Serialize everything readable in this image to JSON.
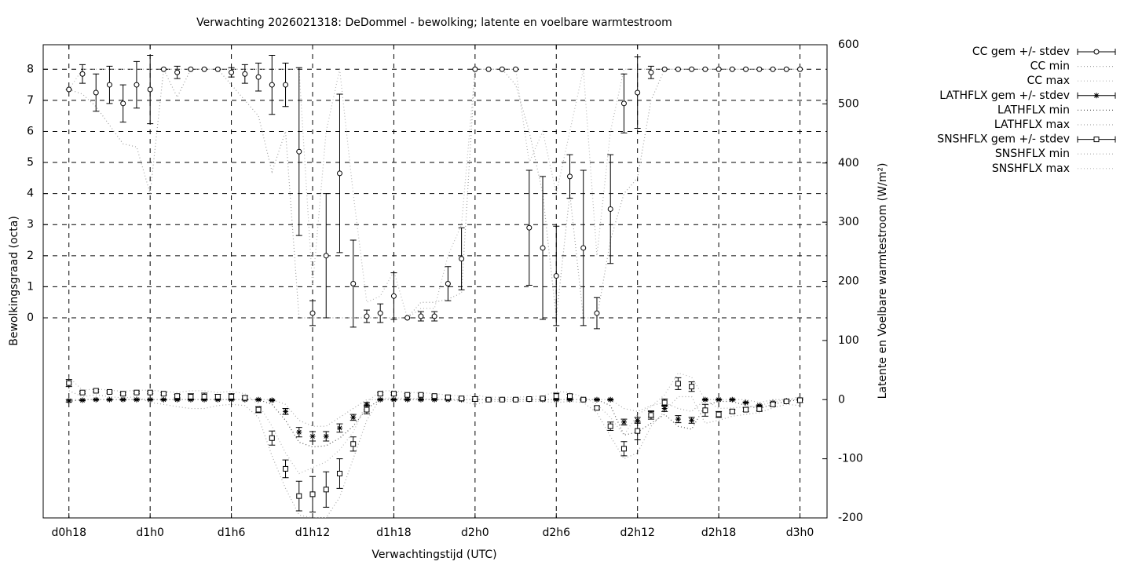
{
  "chart_data": {
    "type": "errorbar",
    "title": "Verwachting 2026021318: DeDommel - bewolking; latente en voelbare warmtestroom",
    "xlabel": "Verwachtingstijd (UTC)",
    "ylabel": "Bewolkingsgraad (octa)",
    "y2label": "Latente en Voelbare warmtestroom (W/m²)",
    "grid": true,
    "xlim": [
      16.1,
      74
    ],
    "xticks": [
      {
        "value": 18,
        "label": "d0h18"
      },
      {
        "value": 24,
        "label": "d1h0"
      },
      {
        "value": 30,
        "label": "d1h6"
      },
      {
        "value": 36,
        "label": "d1h12"
      },
      {
        "value": 42,
        "label": "d1h18"
      },
      {
        "value": 48,
        "label": "d2h0"
      },
      {
        "value": 54,
        "label": "d2h6"
      },
      {
        "value": 60,
        "label": "d2h12"
      },
      {
        "value": 66,
        "label": "d2h18"
      },
      {
        "value": 72,
        "label": "d3h0"
      }
    ],
    "ylim": [
      -6.44,
      8.79
    ],
    "yticks": [
      0,
      1,
      2,
      3,
      4,
      5,
      6,
      7,
      8
    ],
    "y2lim": [
      -200,
      600
    ],
    "y2ticks": [
      -200,
      -100,
      0,
      100,
      200,
      300,
      400,
      500,
      600
    ],
    "x": [
      18,
      19,
      20,
      21,
      22,
      23,
      24,
      25,
      26,
      27,
      28,
      29,
      30,
      31,
      32,
      33,
      34,
      35,
      36,
      37,
      38,
      39,
      40,
      41,
      42,
      43,
      44,
      45,
      46,
      47,
      48,
      49,
      50,
      51,
      52,
      53,
      54,
      55,
      56,
      57,
      58,
      59,
      60,
      61,
      62,
      63,
      64,
      65,
      66,
      67,
      68,
      69,
      70,
      71,
      72
    ],
    "series": [
      {
        "name": "CC gem +/- stdev",
        "style": "errorbars",
        "marker": "circle",
        "axis": "y",
        "color": "#000000",
        "values": [
          7.35,
          7.85,
          7.25,
          7.5,
          6.9,
          7.5,
          7.35,
          8,
          7.9,
          8,
          8,
          8,
          7.9,
          7.85,
          7.75,
          7.5,
          7.5,
          5.35,
          0.15,
          2.0,
          4.65,
          1.1,
          0.05,
          0.15,
          0.7,
          0,
          0.05,
          0.05,
          1.1,
          1.9,
          8,
          8,
          8,
          8,
          2.9,
          2.25,
          1.35,
          4.55,
          2.25,
          0.15,
          3.5,
          6.9,
          7.25,
          7.9,
          8,
          8,
          8,
          8,
          8,
          8,
          8,
          8,
          8,
          8,
          8
        ],
        "errors": [
          0,
          0.3,
          0.6,
          0.6,
          0.6,
          0.75,
          1.1,
          0,
          0.2,
          0,
          0,
          0,
          0.15,
          0.3,
          0.45,
          0.95,
          0.7,
          2.7,
          0.4,
          2.0,
          2.55,
          1.4,
          0.2,
          0.3,
          0.75,
          0,
          0.15,
          0.15,
          0.55,
          1.0,
          0,
          0,
          0,
          0,
          1.85,
          2.3,
          1.6,
          0.7,
          2.5,
          0.5,
          1.75,
          0.95,
          1.15,
          0.2,
          0,
          0,
          0,
          0,
          0,
          0,
          0,
          0,
          0,
          0,
          0
        ]
      },
      {
        "name": "CC min",
        "style": "dotted",
        "axis": "y",
        "color": "#a0a0a0",
        "values": [
          7.35,
          7.2,
          6.8,
          6.2,
          5.6,
          5.5,
          4.0,
          8,
          7.1,
          8,
          8,
          8,
          7.5,
          7.0,
          6.5,
          4.7,
          6.0,
          0,
          0,
          0,
          0,
          0,
          0,
          0,
          0,
          0,
          0.5,
          0.5,
          0.6,
          0.8,
          8,
          8,
          8,
          7.5,
          6,
          4,
          0,
          4,
          0,
          0,
          2.5,
          4.0,
          4.5,
          7,
          8,
          8,
          8,
          8,
          8,
          8,
          8,
          8,
          8,
          8,
          8
        ]
      },
      {
        "name": "CC max",
        "style": "dotted",
        "axis": "y",
        "color": "#b8b8b8",
        "values": [
          7.35,
          8,
          8,
          8,
          8,
          8,
          8,
          8,
          8,
          8,
          8,
          8,
          8,
          8,
          8,
          8,
          8,
          8,
          1.0,
          6,
          8,
          4,
          0.5,
          0.7,
          1.5,
          0,
          0.3,
          0.3,
          2,
          3,
          8,
          8,
          8,
          8,
          5,
          6,
          4,
          6,
          8,
          2,
          6,
          8,
          8,
          8,
          8,
          8,
          8,
          8,
          8,
          8,
          8,
          8,
          8,
          8,
          8
        ]
      },
      {
        "name": "LATHFLX gem +/- stdev",
        "style": "errorbars",
        "marker": "star",
        "axis": "y2",
        "color": "#000000",
        "values": [
          -2,
          -1,
          0,
          0,
          0,
          0,
          0,
          0,
          0,
          0,
          0,
          0,
          0,
          0,
          0,
          -1,
          -20,
          -55,
          -62,
          -62,
          -48,
          -30,
          -8,
          0,
          0,
          0,
          0,
          0,
          0,
          0,
          0,
          0,
          0,
          0,
          0,
          0,
          0,
          0,
          0,
          0,
          0,
          -38,
          -35,
          -25,
          -15,
          -33,
          -35,
          0,
          0,
          0,
          -5,
          -10,
          -5,
          -2,
          0
        ],
        "errors": [
          2,
          1,
          1,
          1,
          1,
          1,
          1,
          1,
          1,
          1,
          1,
          1,
          1,
          1,
          1,
          1,
          5,
          8,
          8,
          8,
          7,
          5,
          3,
          1,
          1,
          1,
          1,
          1,
          1,
          1,
          1,
          1,
          1,
          1,
          1,
          1,
          1,
          1,
          1,
          1,
          1,
          5,
          5,
          5,
          5,
          6,
          5,
          1,
          1,
          1,
          1,
          1,
          1,
          1,
          1
        ]
      },
      {
        "name": "LATHFLX min",
        "style": "dotted",
        "axis": "y2",
        "color": "#555555",
        "values": [
          -3,
          0,
          0,
          0,
          0,
          0,
          0,
          0,
          0,
          0,
          0,
          0,
          0,
          0,
          0,
          -8,
          -35,
          -72,
          -80,
          -78,
          -65,
          -45,
          -15,
          0,
          0,
          0,
          0,
          0,
          0,
          0,
          0,
          0,
          0,
          0,
          0,
          0,
          0,
          0,
          0,
          0,
          -10,
          -60,
          -55,
          -40,
          -25,
          -45,
          -50,
          -10,
          -3,
          -3,
          -10,
          -15,
          -8,
          -3,
          0
        ]
      },
      {
        "name": "LATHFLX max",
        "style": "dotted",
        "axis": "y2",
        "color": "#a8a8a8",
        "values": [
          0,
          0,
          0,
          0,
          0,
          0,
          0,
          0,
          0,
          0,
          0,
          0,
          0,
          0,
          0,
          0,
          -8,
          -35,
          -45,
          -45,
          -30,
          -15,
          0,
          0,
          0,
          0,
          0,
          0,
          0,
          0,
          0,
          0,
          0,
          0,
          0,
          0,
          0,
          0,
          0,
          0,
          0,
          -15,
          -20,
          -10,
          -5,
          -15,
          -20,
          0,
          0,
          0,
          0,
          -5,
          0,
          0,
          0
        ]
      },
      {
        "name": "SNSHFLX gem +/- stdev",
        "style": "errorbars",
        "marker": "square",
        "axis": "y2",
        "color": "#000000",
        "values": [
          28,
          12,
          15,
          13,
          10,
          12,
          12,
          10,
          6,
          5,
          5,
          5,
          5,
          3,
          -17,
          -65,
          -117,
          -163,
          -160,
          -152,
          -125,
          -75,
          -17,
          10,
          10,
          8,
          8,
          6,
          4,
          2,
          1,
          0,
          0,
          0,
          1,
          2,
          6,
          6,
          0,
          -14,
          -45,
          -83,
          -53,
          -26,
          -5,
          27,
          22,
          -18,
          -25,
          -20,
          -17,
          -16,
          -8,
          -3,
          -1
        ],
        "errors": [
          6,
          2,
          2,
          2,
          2,
          2,
          2,
          2,
          3,
          5,
          6,
          4,
          5,
          4,
          5,
          12,
          15,
          25,
          30,
          30,
          25,
          12,
          7,
          2,
          2,
          2,
          2,
          2,
          2,
          2,
          4,
          2,
          2,
          2,
          2,
          2,
          5,
          3,
          2,
          3,
          7,
          12,
          15,
          7,
          6,
          10,
          8,
          10,
          5,
          3,
          3,
          3,
          3,
          2,
          4
        ]
      },
      {
        "name": "SNSHFLX min",
        "style": "dotted",
        "axis": "y2",
        "color": "#a8a8a8",
        "values": [
          15,
          5,
          8,
          5,
          3,
          5,
          -5,
          -8,
          -12,
          -15,
          -15,
          -10,
          -8,
          -10,
          -30,
          -95,
          -150,
          -195,
          -200,
          -200,
          -165,
          -100,
          -35,
          2,
          3,
          2,
          2,
          0,
          0,
          -3,
          -8,
          -3,
          -3,
          -3,
          -3,
          -3,
          -5,
          -3,
          -5,
          -22,
          -62,
          -100,
          -90,
          -45,
          -20,
          5,
          5,
          -40,
          -35,
          -28,
          -25,
          -22,
          -14,
          -8,
          -10
        ]
      },
      {
        "name": "SNSHFLX max",
        "style": "dotted",
        "axis": "y2",
        "color": "#b8b8b8",
        "values": [
          38,
          16,
          18,
          16,
          14,
          16,
          16,
          14,
          12,
          15,
          15,
          12,
          14,
          10,
          -8,
          -45,
          -90,
          -125,
          -115,
          -105,
          -85,
          -55,
          -5,
          15,
          15,
          12,
          12,
          10,
          8,
          6,
          8,
          4,
          4,
          4,
          5,
          6,
          14,
          12,
          4,
          -8,
          -30,
          -60,
          -25,
          -12,
          8,
          45,
          38,
          0,
          -15,
          -14,
          -12,
          -10,
          -4,
          0,
          5
        ]
      }
    ]
  }
}
